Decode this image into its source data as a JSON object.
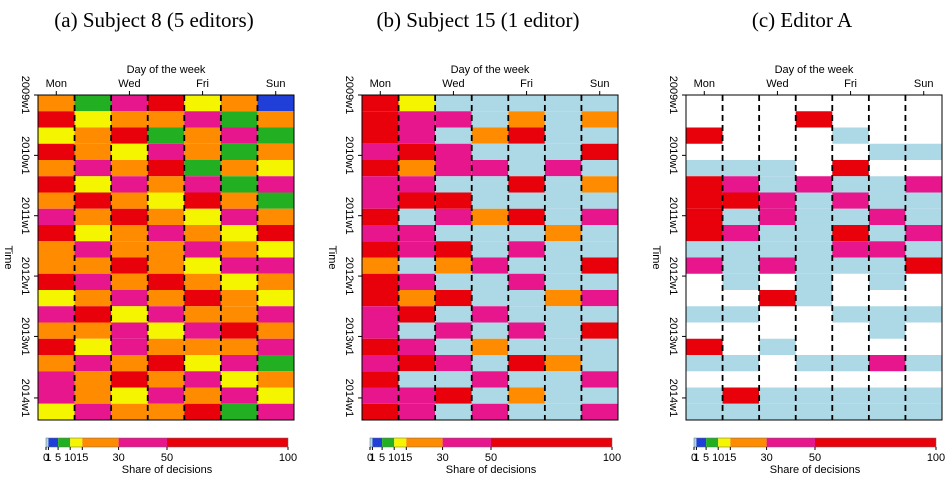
{
  "chart_data": [
    {
      "type": "heatmap",
      "title": "(a) Subject 8 (5 editors)",
      "xlabel": "Day of the week",
      "ylabel": "Time",
      "categories": [
        "Mon",
        null,
        "Wed",
        null,
        "Fri",
        null,
        "Sun"
      ],
      "ylim": [
        0,
        280
      ],
      "yticks": [
        {
          "value": 0,
          "label": "2009w1"
        },
        {
          "value": 52,
          "label": "2010w1"
        },
        {
          "value": 104,
          "label": "2011w1"
        },
        {
          "value": 156,
          "label": "2012w1"
        },
        {
          "value": 208,
          "label": "2013w1"
        },
        {
          "value": 261,
          "label": "2014w1"
        }
      ],
      "y_bins": [
        0,
        14,
        28,
        42,
        56,
        70,
        84,
        98,
        112,
        126,
        140,
        154,
        168,
        182,
        196,
        210,
        224,
        238,
        252,
        266,
        280
      ],
      "values": [
        [
          20,
          8,
          35,
          60,
          12,
          25,
          4
        ],
        [
          55,
          15,
          30,
          20,
          40,
          10,
          18
        ],
        [
          12,
          30,
          60,
          8,
          25,
          45,
          6
        ],
        [
          70,
          20,
          12,
          35,
          18,
          6,
          28
        ],
        [
          25,
          40,
          18,
          55,
          10,
          30,
          14
        ],
        [
          60,
          12,
          45,
          20,
          35,
          8,
          40
        ],
        [
          18,
          55,
          25,
          12,
          60,
          20,
          9
        ],
        [
          40,
          22,
          70,
          30,
          15,
          35,
          25
        ],
        [
          65,
          14,
          20,
          45,
          28,
          12,
          55
        ],
        [
          30,
          50,
          16,
          25,
          40,
          22,
          11
        ],
        [
          22,
          28,
          55,
          18,
          12,
          45,
          35
        ],
        [
          75,
          35,
          25,
          60,
          20,
          14,
          26
        ],
        [
          15,
          18,
          40,
          28,
          55,
          30,
          12
        ],
        [
          45,
          60,
          12,
          35,
          25,
          18,
          48
        ],
        [
          28,
          22,
          35,
          14,
          40,
          55,
          20
        ],
        [
          58,
          12,
          48,
          30,
          18,
          25,
          32
        ],
        [
          20,
          38,
          25,
          65,
          12,
          40,
          8
        ],
        [
          35,
          16,
          60,
          22,
          45,
          12,
          28
        ],
        [
          50,
          25,
          14,
          40,
          20,
          35,
          15
        ],
        [
          12,
          45,
          30,
          18,
          55,
          10,
          38
        ]
      ],
      "colorbar": {
        "label": "Share of decisions",
        "breaks": [
          0,
          1,
          5,
          10,
          15,
          30,
          50,
          100
        ],
        "colors": [
          "#add8e6",
          "#1f3fd8",
          "#22b022",
          "#f5f500",
          "#ff8c00",
          "#e8168c",
          "#e8000b"
        ]
      }
    },
    {
      "type": "heatmap",
      "title": "(b) Subject 15 (1 editor)",
      "xlabel": "Day of the week",
      "ylabel": "Time",
      "categories": [
        "Mon",
        null,
        "Wed",
        null,
        "Fri",
        null,
        "Sun"
      ],
      "ylim": [
        0,
        280
      ],
      "yticks": [
        {
          "value": 0,
          "label": "2009w1"
        },
        {
          "value": 52,
          "label": "2010w1"
        },
        {
          "value": 104,
          "label": "2011w1"
        },
        {
          "value": 156,
          "label": "2012w1"
        },
        {
          "value": 208,
          "label": "2013w1"
        },
        {
          "value": 261,
          "label": "2014w1"
        }
      ],
      "y_bins": [
        0,
        14,
        28,
        42,
        56,
        70,
        84,
        98,
        112,
        126,
        140,
        154,
        168,
        182,
        196,
        210,
        224,
        238,
        252,
        266,
        280
      ],
      "values": [
        [
          60,
          12,
          0,
          0,
          0,
          0,
          0
        ],
        [
          55,
          35,
          40,
          0,
          20,
          0,
          30
        ],
        [
          70,
          45,
          0,
          25,
          60,
          0,
          0
        ],
        [
          40,
          60,
          35,
          0,
          0,
          0,
          55
        ],
        [
          65,
          20,
          50,
          45,
          0,
          35,
          0
        ],
        [
          50,
          40,
          0,
          0,
          60,
          0,
          25
        ],
        [
          35,
          55,
          65,
          0,
          0,
          0,
          0
        ],
        [
          70,
          0,
          40,
          30,
          55,
          0,
          45
        ],
        [
          45,
          35,
          0,
          0,
          0,
          20,
          0
        ],
        [
          60,
          50,
          55,
          0,
          40,
          0,
          0
        ],
        [
          30,
          0,
          20,
          45,
          0,
          0,
          60
        ],
        [
          55,
          40,
          0,
          0,
          35,
          0,
          0
        ],
        [
          65,
          25,
          60,
          0,
          0,
          30,
          40
        ],
        [
          40,
          55,
          0,
          50,
          0,
          0,
          0
        ],
        [
          50,
          0,
          35,
          0,
          45,
          0,
          55
        ],
        [
          60,
          45,
          0,
          30,
          0,
          0,
          0
        ],
        [
          35,
          60,
          40,
          0,
          55,
          20,
          0
        ],
        [
          55,
          0,
          0,
          45,
          0,
          0,
          35
        ],
        [
          45,
          50,
          60,
          0,
          30,
          0,
          0
        ],
        [
          65,
          40,
          0,
          35,
          0,
          0,
          50
        ]
      ],
      "colorbar": {
        "label": "Share of decisions",
        "breaks": [
          0,
          1,
          5,
          10,
          15,
          30,
          50,
          100
        ],
        "colors": [
          "#add8e6",
          "#1f3fd8",
          "#22b022",
          "#f5f500",
          "#ff8c00",
          "#e8168c",
          "#e8000b"
        ]
      }
    },
    {
      "type": "heatmap",
      "title": "(c) Editor A",
      "xlabel": "Day of the week",
      "ylabel": "Time",
      "categories": [
        "Mon",
        null,
        "Wed",
        null,
        "Fri",
        null,
        "Sun"
      ],
      "ylim": [
        0,
        280
      ],
      "yticks": [
        {
          "value": 0,
          "label": "2009w1"
        },
        {
          "value": 52,
          "label": "2010w1"
        },
        {
          "value": 104,
          "label": "2011w1"
        },
        {
          "value": 156,
          "label": "2012w1"
        },
        {
          "value": 208,
          "label": "2013w1"
        },
        {
          "value": 261,
          "label": "2014w1"
        }
      ],
      "y_bins": [
        0,
        14,
        28,
        42,
        56,
        70,
        84,
        98,
        112,
        126,
        140,
        154,
        168,
        182,
        196,
        210,
        224,
        238,
        252,
        266,
        280
      ],
      "values": [
        [
          null,
          null,
          null,
          null,
          null,
          null,
          null
        ],
        [
          null,
          null,
          null,
          60,
          null,
          null,
          null
        ],
        [
          80,
          null,
          null,
          null,
          0,
          null,
          null
        ],
        [
          null,
          null,
          null,
          null,
          null,
          0,
          0
        ],
        [
          0,
          0,
          0,
          null,
          70,
          null,
          null
        ],
        [
          60,
          40,
          0,
          35,
          0,
          0,
          50
        ],
        [
          70,
          55,
          45,
          0,
          40,
          0,
          0
        ],
        [
          65,
          0,
          50,
          0,
          0,
          45,
          0
        ],
        [
          55,
          40,
          0,
          0,
          60,
          0,
          35
        ],
        [
          0,
          0,
          0,
          0,
          50,
          40,
          0
        ],
        [
          45,
          0,
          35,
          0,
          0,
          0,
          60
        ],
        [
          null,
          0,
          null,
          0,
          null,
          0,
          null
        ],
        [
          null,
          null,
          70,
          0,
          null,
          null,
          null
        ],
        [
          0,
          0,
          null,
          null,
          0,
          0,
          0
        ],
        [
          null,
          null,
          null,
          null,
          null,
          0,
          null
        ],
        [
          60,
          null,
          0,
          null,
          null,
          null,
          null
        ],
        [
          0,
          0,
          null,
          0,
          0,
          40,
          0
        ],
        [
          null,
          null,
          null,
          null,
          null,
          null,
          null
        ],
        [
          0,
          65,
          0,
          0,
          0,
          0,
          0
        ],
        [
          0,
          0,
          0,
          0,
          0,
          0,
          0
        ]
      ],
      "colorbar": {
        "label": "Share of decisions",
        "breaks": [
          0,
          1,
          5,
          10,
          15,
          30,
          50,
          100
        ],
        "colors": [
          "#add8e6",
          "#1f3fd8",
          "#22b022",
          "#f5f500",
          "#ff8c00",
          "#e8168c",
          "#e8000b"
        ]
      }
    }
  ]
}
